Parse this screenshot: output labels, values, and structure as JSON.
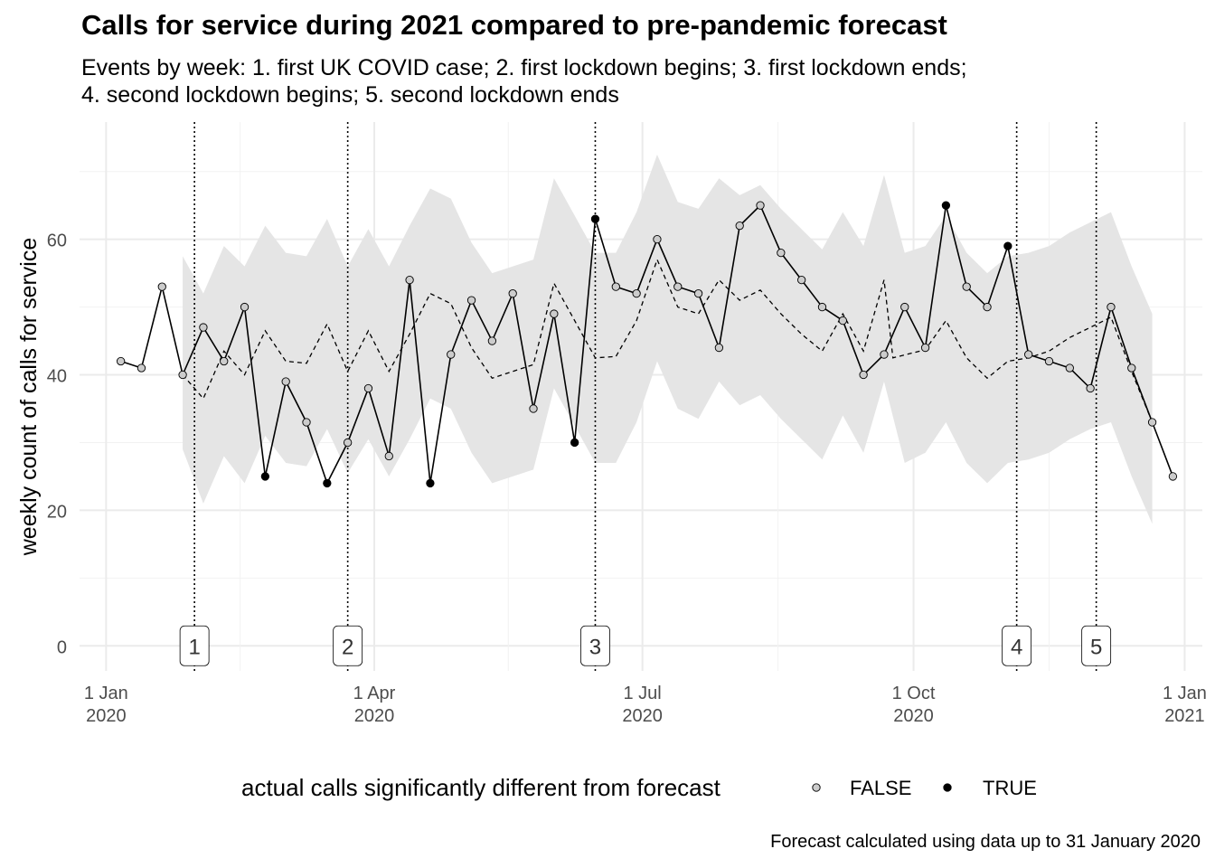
{
  "title": "Calls for service during 2021 compared to pre-pandemic forecast",
  "subtitle": "Events by week: 1. first UK COVID case; 2. first lockdown begins; 3. first lockdown ends; 4. second lockdown begins; 5. second lockdown ends",
  "caption": "Forecast calculated using data up to 31 January 2020",
  "legend": {
    "title": "actual calls significantly different from forecast",
    "items": [
      {
        "label": "FALSE",
        "fill": "#cccccc"
      },
      {
        "label": "TRUE",
        "fill": "#000000"
      }
    ]
  },
  "chart_data": {
    "type": "line",
    "ylabel": "weekly count of calls for service",
    "xlabel": "",
    "ylim": [
      0,
      70
    ],
    "xlim": [
      "2019-12-23",
      "2021-01-07"
    ],
    "y_ticks": [
      0,
      20,
      40,
      60
    ],
    "x_ticks": [
      {
        "date": "2020-01-01",
        "label": [
          "1 Jan",
          "2020"
        ]
      },
      {
        "date": "2020-04-01",
        "label": [
          "1 Apr",
          "2020"
        ]
      },
      {
        "date": "2020-07-01",
        "label": [
          "1 Jul",
          "2020"
        ]
      },
      {
        "date": "2020-10-01",
        "label": [
          "1 Oct",
          "2020"
        ]
      },
      {
        "date": "2021-01-01",
        "label": [
          "1 Jan",
          "2021"
        ]
      }
    ],
    "grid": true,
    "legend_position": "bottom",
    "series": [
      {
        "name": "actual calls",
        "style": "solid line with points",
        "points": [
          {
            "x": "2020-01-06",
            "y": 42,
            "significant": false
          },
          {
            "x": "2020-01-13",
            "y": 41,
            "significant": false
          },
          {
            "x": "2020-01-20",
            "y": 53,
            "significant": false
          },
          {
            "x": "2020-01-27",
            "y": 40,
            "significant": false
          },
          {
            "x": "2020-02-03",
            "y": 47,
            "significant": false
          },
          {
            "x": "2020-02-10",
            "y": 42,
            "significant": false
          },
          {
            "x": "2020-02-17",
            "y": 50,
            "significant": false
          },
          {
            "x": "2020-02-24",
            "y": 25,
            "significant": true
          },
          {
            "x": "2020-03-02",
            "y": 39,
            "significant": false
          },
          {
            "x": "2020-03-09",
            "y": 33,
            "significant": false
          },
          {
            "x": "2020-03-16",
            "y": 24,
            "significant": true
          },
          {
            "x": "2020-03-23",
            "y": 30,
            "significant": false
          },
          {
            "x": "2020-03-30",
            "y": 38,
            "significant": false
          },
          {
            "x": "2020-04-06",
            "y": 28,
            "significant": false
          },
          {
            "x": "2020-04-13",
            "y": 54,
            "significant": false
          },
          {
            "x": "2020-04-20",
            "y": 24,
            "significant": true
          },
          {
            "x": "2020-04-27",
            "y": 43,
            "significant": false
          },
          {
            "x": "2020-05-04",
            "y": 51,
            "significant": false
          },
          {
            "x": "2020-05-11",
            "y": 45,
            "significant": false
          },
          {
            "x": "2020-05-18",
            "y": 52,
            "significant": false
          },
          {
            "x": "2020-05-25",
            "y": 35,
            "significant": false
          },
          {
            "x": "2020-06-01",
            "y": 49,
            "significant": false
          },
          {
            "x": "2020-06-08",
            "y": 30,
            "significant": true
          },
          {
            "x": "2020-06-15",
            "y": 63,
            "significant": true
          },
          {
            "x": "2020-06-22",
            "y": 53,
            "significant": false
          },
          {
            "x": "2020-06-29",
            "y": 52,
            "significant": false
          },
          {
            "x": "2020-07-06",
            "y": 60,
            "significant": false
          },
          {
            "x": "2020-07-13",
            "y": 53,
            "significant": false
          },
          {
            "x": "2020-07-20",
            "y": 52,
            "significant": false
          },
          {
            "x": "2020-07-27",
            "y": 44,
            "significant": false
          },
          {
            "x": "2020-08-03",
            "y": 62,
            "significant": false
          },
          {
            "x": "2020-08-10",
            "y": 65,
            "significant": false
          },
          {
            "x": "2020-08-17",
            "y": 58,
            "significant": false
          },
          {
            "x": "2020-08-24",
            "y": 54,
            "significant": false
          },
          {
            "x": "2020-08-31",
            "y": 50,
            "significant": false
          },
          {
            "x": "2020-09-07",
            "y": 48,
            "significant": false
          },
          {
            "x": "2020-09-14",
            "y": 40,
            "significant": false
          },
          {
            "x": "2020-09-21",
            "y": 43,
            "significant": false
          },
          {
            "x": "2020-09-28",
            "y": 50,
            "significant": false
          },
          {
            "x": "2020-10-05",
            "y": 44,
            "significant": false
          },
          {
            "x": "2020-10-12",
            "y": 65,
            "significant": true
          },
          {
            "x": "2020-10-19",
            "y": 53,
            "significant": false
          },
          {
            "x": "2020-10-26",
            "y": 50,
            "significant": false
          },
          {
            "x": "2020-11-02",
            "y": 59,
            "significant": true
          },
          {
            "x": "2020-11-09",
            "y": 43,
            "significant": false
          },
          {
            "x": "2020-11-16",
            "y": 42,
            "significant": false
          },
          {
            "x": "2020-11-23",
            "y": 41,
            "significant": false
          },
          {
            "x": "2020-11-30",
            "y": 38,
            "significant": false
          },
          {
            "x": "2020-12-07",
            "y": 50,
            "significant": false
          },
          {
            "x": "2020-12-14",
            "y": 41,
            "significant": false
          },
          {
            "x": "2020-12-21",
            "y": 33,
            "significant": false
          },
          {
            "x": "2020-12-28",
            "y": 25,
            "significant": false
          }
        ]
      },
      {
        "name": "forecast",
        "style": "dashed line",
        "points": [
          {
            "x": "2020-01-27",
            "y": 40
          },
          {
            "x": "2020-02-03",
            "y": 36.5
          },
          {
            "x": "2020-02-10",
            "y": 43.5
          },
          {
            "x": "2020-02-17",
            "y": 40
          },
          {
            "x": "2020-02-24",
            "y": 46.5
          },
          {
            "x": "2020-03-02",
            "y": 42
          },
          {
            "x": "2020-03-09",
            "y": 41.7
          },
          {
            "x": "2020-03-16",
            "y": 47.5
          },
          {
            "x": "2020-03-23",
            "y": 40.5
          },
          {
            "x": "2020-03-30",
            "y": 46.5
          },
          {
            "x": "2020-04-06",
            "y": 40.5
          },
          {
            "x": "2020-04-13",
            "y": 46
          },
          {
            "x": "2020-04-20",
            "y": 52
          },
          {
            "x": "2020-04-27",
            "y": 50.5
          },
          {
            "x": "2020-05-04",
            "y": 44
          },
          {
            "x": "2020-05-11",
            "y": 39.5
          },
          {
            "x": "2020-05-18",
            "y": 40.5
          },
          {
            "x": "2020-05-25",
            "y": 41.5
          },
          {
            "x": "2020-06-01",
            "y": 53.5
          },
          {
            "x": "2020-06-08",
            "y": 48
          },
          {
            "x": "2020-06-15",
            "y": 42.5
          },
          {
            "x": "2020-06-22",
            "y": 42.7
          },
          {
            "x": "2020-06-29",
            "y": 48
          },
          {
            "x": "2020-07-06",
            "y": 57
          },
          {
            "x": "2020-07-13",
            "y": 50
          },
          {
            "x": "2020-07-20",
            "y": 49
          },
          {
            "x": "2020-07-27",
            "y": 54
          },
          {
            "x": "2020-08-03",
            "y": 51
          },
          {
            "x": "2020-08-10",
            "y": 52.5
          },
          {
            "x": "2020-08-17",
            "y": 49
          },
          {
            "x": "2020-08-24",
            "y": 46
          },
          {
            "x": "2020-08-31",
            "y": 43.5
          },
          {
            "x": "2020-09-07",
            "y": 49
          },
          {
            "x": "2020-09-14",
            "y": 43.5
          },
          {
            "x": "2020-09-21",
            "y": 54
          },
          {
            "x": "2020-09-24",
            "y": 42.5
          },
          {
            "x": "2020-10-05",
            "y": 43.7
          },
          {
            "x": "2020-10-12",
            "y": 48
          },
          {
            "x": "2020-10-19",
            "y": 42.5
          },
          {
            "x": "2020-10-26",
            "y": 39.5
          },
          {
            "x": "2020-11-02",
            "y": 42
          },
          {
            "x": "2020-11-09",
            "y": 42.5
          },
          {
            "x": "2020-11-16",
            "y": 43.5
          },
          {
            "x": "2020-11-23",
            "y": 45.5
          },
          {
            "x": "2020-11-30",
            "y": 47
          },
          {
            "x": "2020-12-07",
            "y": 48.5
          },
          {
            "x": "2020-12-14",
            "y": 40.5
          },
          {
            "x": "2020-12-21",
            "y": 33
          }
        ]
      },
      {
        "name": "forecast interval",
        "style": "grey ribbon",
        "points": [
          {
            "x": "2020-01-27",
            "lower": 29,
            "upper": 57.5
          },
          {
            "x": "2020-02-03",
            "lower": 21,
            "upper": 52
          },
          {
            "x": "2020-02-10",
            "lower": 28,
            "upper": 59
          },
          {
            "x": "2020-02-17",
            "lower": 24,
            "upper": 56
          },
          {
            "x": "2020-02-24",
            "lower": 31,
            "upper": 62
          },
          {
            "x": "2020-03-02",
            "lower": 27,
            "upper": 58
          },
          {
            "x": "2020-03-09",
            "lower": 26.5,
            "upper": 57.5
          },
          {
            "x": "2020-03-16",
            "lower": 32,
            "upper": 63
          },
          {
            "x": "2020-03-23",
            "lower": 25.5,
            "upper": 56
          },
          {
            "x": "2020-03-30",
            "lower": 30.5,
            "upper": 61.5
          },
          {
            "x": "2020-04-06",
            "lower": 25,
            "upper": 56
          },
          {
            "x": "2020-04-13",
            "lower": 30.5,
            "upper": 62
          },
          {
            "x": "2020-04-20",
            "lower": 36.5,
            "upper": 67.5
          },
          {
            "x": "2020-04-27",
            "lower": 35,
            "upper": 66
          },
          {
            "x": "2020-05-04",
            "lower": 28.5,
            "upper": 59.5
          },
          {
            "x": "2020-05-11",
            "lower": 24,
            "upper": 55
          },
          {
            "x": "2020-05-18",
            "lower": 25,
            "upper": 56
          },
          {
            "x": "2020-05-25",
            "lower": 26,
            "upper": 57
          },
          {
            "x": "2020-06-01",
            "lower": 38,
            "upper": 69
          },
          {
            "x": "2020-06-08",
            "lower": 32.5,
            "upper": 63.5
          },
          {
            "x": "2020-06-15",
            "lower": 27,
            "upper": 58
          },
          {
            "x": "2020-06-22",
            "lower": 27,
            "upper": 58
          },
          {
            "x": "2020-06-29",
            "lower": 33,
            "upper": 64
          },
          {
            "x": "2020-07-06",
            "lower": 42,
            "upper": 72.5
          },
          {
            "x": "2020-07-13",
            "lower": 35,
            "upper": 65.5
          },
          {
            "x": "2020-07-20",
            "lower": 33.5,
            "upper": 64.5
          },
          {
            "x": "2020-07-27",
            "lower": 39,
            "upper": 69
          },
          {
            "x": "2020-08-03",
            "lower": 35.5,
            "upper": 66.5
          },
          {
            "x": "2020-08-10",
            "lower": 37,
            "upper": 68
          },
          {
            "x": "2020-08-17",
            "lower": 33.5,
            "upper": 64.5
          },
          {
            "x": "2020-08-24",
            "lower": 30.5,
            "upper": 61.5
          },
          {
            "x": "2020-08-31",
            "lower": 27.5,
            "upper": 58.5
          },
          {
            "x": "2020-09-07",
            "lower": 34,
            "upper": 64
          },
          {
            "x": "2020-09-14",
            "lower": 28.5,
            "upper": 59
          },
          {
            "x": "2020-09-21",
            "lower": 39,
            "upper": 69.5
          },
          {
            "x": "2020-09-28",
            "lower": 27,
            "upper": 58
          },
          {
            "x": "2020-10-05",
            "lower": 28.5,
            "upper": 59
          },
          {
            "x": "2020-10-12",
            "lower": 33,
            "upper": 63.5
          },
          {
            "x": "2020-10-19",
            "lower": 27,
            "upper": 58
          },
          {
            "x": "2020-10-26",
            "lower": 24,
            "upper": 55
          },
          {
            "x": "2020-11-02",
            "lower": 27,
            "upper": 57.5
          },
          {
            "x": "2020-11-09",
            "lower": 27.5,
            "upper": 58
          },
          {
            "x": "2020-11-16",
            "lower": 28.5,
            "upper": 59
          },
          {
            "x": "2020-11-23",
            "lower": 30.5,
            "upper": 61
          },
          {
            "x": "2020-11-30",
            "lower": 32,
            "upper": 62.5
          },
          {
            "x": "2020-12-07",
            "lower": 33,
            "upper": 64
          },
          {
            "x": "2020-12-14",
            "lower": 25,
            "upper": 56
          },
          {
            "x": "2020-12-21",
            "lower": 18,
            "upper": 49
          }
        ]
      }
    ],
    "events": [
      {
        "label": "1",
        "x": "2020-01-31"
      },
      {
        "label": "2",
        "x": "2020-03-23"
      },
      {
        "label": "3",
        "x": "2020-06-15"
      },
      {
        "label": "4",
        "x": "2020-11-05"
      },
      {
        "label": "5",
        "x": "2020-12-02"
      }
    ]
  }
}
